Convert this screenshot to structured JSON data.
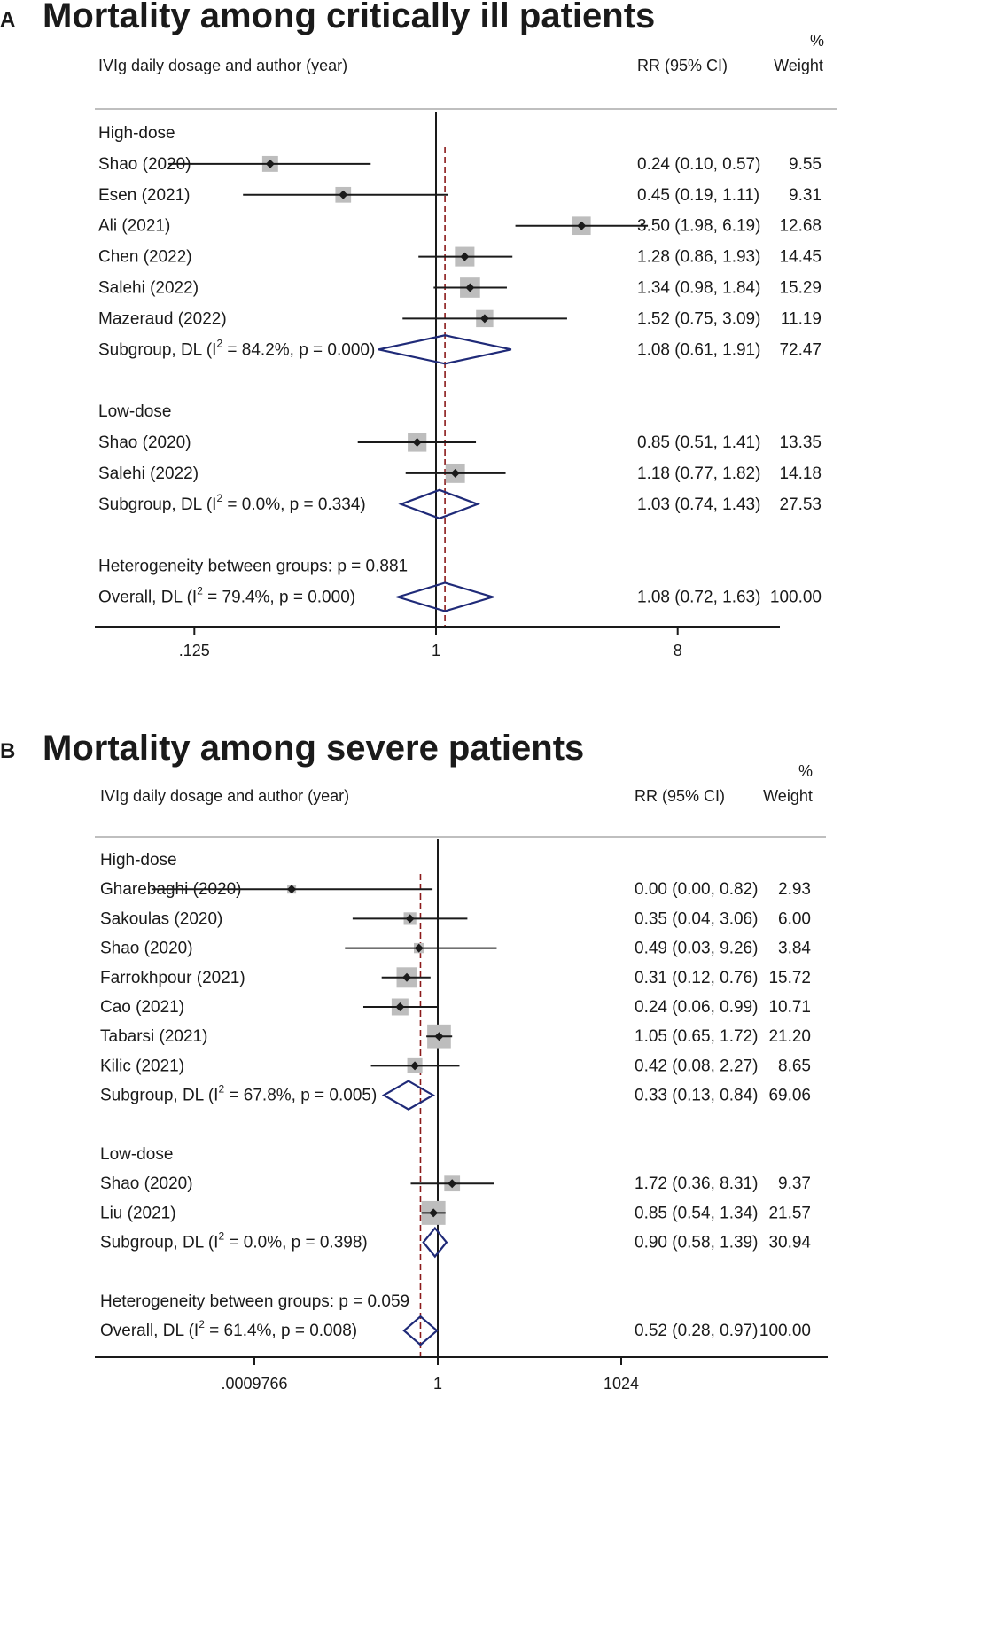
{
  "chart_data": [
    {
      "type": "forest",
      "panel_label": "A",
      "title": "Mortality among critically ill patients",
      "header": {
        "label_col": "IVIg daily dosage and author (year)",
        "rr_col": "RR (95% CI)",
        "weight_pct": "%",
        "weight_col": "Weight"
      },
      "scale": "log",
      "x_ticks": [
        {
          "value": 0.125,
          "label": ".125"
        },
        {
          "value": 1,
          "label": "1"
        },
        {
          "value": 8,
          "label": "8"
        }
      ],
      "null_line": 1,
      "overall_line": 1.08,
      "rows": [
        {
          "kind": "group",
          "label": "High-dose"
        },
        {
          "kind": "study",
          "label": "Shao (2020)",
          "rr": 0.24,
          "lo": 0.1,
          "hi": 0.57,
          "rr_text": "0.24 (0.10, 0.57)",
          "weight": "9.55"
        },
        {
          "kind": "study",
          "label": "Esen (2021)",
          "rr": 0.45,
          "lo": 0.19,
          "hi": 1.11,
          "rr_text": "0.45 (0.19, 1.11)",
          "weight": "9.31"
        },
        {
          "kind": "study",
          "label": "Ali (2021)",
          "rr": 3.5,
          "lo": 1.98,
          "hi": 6.19,
          "rr_text": "3.50 (1.98, 6.19)",
          "weight": "12.68"
        },
        {
          "kind": "study",
          "label": "Chen (2022)",
          "rr": 1.28,
          "lo": 0.86,
          "hi": 1.93,
          "rr_text": "1.28 (0.86, 1.93)",
          "weight": "14.45"
        },
        {
          "kind": "study",
          "label": "Salehi (2022)",
          "rr": 1.34,
          "lo": 0.98,
          "hi": 1.84,
          "rr_text": "1.34 (0.98, 1.84)",
          "weight": "15.29"
        },
        {
          "kind": "study",
          "label": "Mazeraud (2022)",
          "rr": 1.52,
          "lo": 0.75,
          "hi": 3.09,
          "rr_text": "1.52 (0.75, 3.09)",
          "weight": "11.19"
        },
        {
          "kind": "subgroup",
          "label_pre": "Subgroup, DL (I",
          "label_sup": "2",
          "label_post": " = 84.2%, p = 0.000)",
          "rr": 1.08,
          "lo": 0.61,
          "hi": 1.91,
          "rr_text": "1.08 (0.61, 1.91)",
          "weight": "72.47"
        },
        {
          "kind": "blank"
        },
        {
          "kind": "group",
          "label": "Low-dose"
        },
        {
          "kind": "study",
          "label": "Shao (2020)",
          "rr": 0.85,
          "lo": 0.51,
          "hi": 1.41,
          "rr_text": "0.85 (0.51, 1.41)",
          "weight": "13.35"
        },
        {
          "kind": "study",
          "label": "Salehi (2022)",
          "rr": 1.18,
          "lo": 0.77,
          "hi": 1.82,
          "rr_text": "1.18 (0.77, 1.82)",
          "weight": "14.18"
        },
        {
          "kind": "subgroup",
          "label_pre": "Subgroup, DL (I",
          "label_sup": "2",
          "label_post": " = 0.0%, p = 0.334)",
          "rr": 1.03,
          "lo": 0.74,
          "hi": 1.43,
          "rr_text": "1.03 (0.74, 1.43)",
          "weight": "27.53"
        },
        {
          "kind": "blank"
        },
        {
          "kind": "group",
          "label": "Heterogeneity between groups: p = 0.881"
        },
        {
          "kind": "overall",
          "label_pre": "Overall, DL (I",
          "label_sup": "2",
          "label_post": " = 79.4%, p = 0.000)",
          "rr": 1.08,
          "lo": 0.72,
          "hi": 1.63,
          "rr_text": "1.08 (0.72, 1.63)",
          "weight": "100.00"
        }
      ]
    },
    {
      "type": "forest",
      "panel_label": "B",
      "title": "Mortality among severe patients",
      "header": {
        "label_col": "IVIg daily dosage and author (year)",
        "rr_col": "RR (95% CI)",
        "weight_pct": "%",
        "weight_col": "Weight"
      },
      "scale": "log",
      "x_ticks": [
        {
          "value": 0.0009766,
          "label": ".0009766"
        },
        {
          "value": 1,
          "label": "1"
        },
        {
          "value": 1024,
          "label": "1024"
        }
      ],
      "null_line": 1,
      "overall_line": 0.52,
      "rows": [
        {
          "kind": "group",
          "label": "High-dose"
        },
        {
          "kind": "study",
          "label": "Gharebaghi (2020)",
          "rr": 0.004,
          "lo": 2e-05,
          "hi": 0.82,
          "rr_text": "0.00 (0.00, 0.82)",
          "weight": "2.93"
        },
        {
          "kind": "study",
          "label": "Sakoulas (2020)",
          "rr": 0.35,
          "lo": 0.04,
          "hi": 3.06,
          "rr_text": "0.35 (0.04, 3.06)",
          "weight": "6.00"
        },
        {
          "kind": "study",
          "label": "Shao (2020)",
          "rr": 0.49,
          "lo": 0.03,
          "hi": 9.26,
          "rr_text": "0.49 (0.03, 9.26)",
          "weight": "3.84"
        },
        {
          "kind": "study",
          "label": "Farrokhpour (2021)",
          "rr": 0.31,
          "lo": 0.12,
          "hi": 0.76,
          "rr_text": "0.31 (0.12, 0.76)",
          "weight": "15.72"
        },
        {
          "kind": "study",
          "label": "Cao (2021)",
          "rr": 0.24,
          "lo": 0.06,
          "hi": 0.99,
          "rr_text": "0.24 (0.06, 0.99)",
          "weight": "10.71"
        },
        {
          "kind": "study",
          "label": "Tabarsi (2021)",
          "rr": 1.05,
          "lo": 0.65,
          "hi": 1.72,
          "rr_text": "1.05 (0.65, 1.72)",
          "weight": "21.20"
        },
        {
          "kind": "study",
          "label": "Kilic (2021)",
          "rr": 0.42,
          "lo": 0.08,
          "hi": 2.27,
          "rr_text": "0.42 (0.08, 2.27)",
          "weight": "8.65"
        },
        {
          "kind": "subgroup",
          "label_pre": "Subgroup, DL (I",
          "label_sup": "2",
          "label_post": " = 67.8%, p = 0.005)",
          "rr": 0.33,
          "lo": 0.13,
          "hi": 0.84,
          "rr_text": "0.33 (0.13, 0.84)",
          "weight": "69.06"
        },
        {
          "kind": "blank"
        },
        {
          "kind": "group",
          "label": "Low-dose"
        },
        {
          "kind": "study",
          "label": "Shao (2020)",
          "rr": 1.72,
          "lo": 0.36,
          "hi": 8.31,
          "rr_text": "1.72 (0.36, 8.31)",
          "weight": "9.37"
        },
        {
          "kind": "study",
          "label": "Liu (2021)",
          "rr": 0.85,
          "lo": 0.54,
          "hi": 1.34,
          "rr_text": "0.85 (0.54, 1.34)",
          "weight": "21.57"
        },
        {
          "kind": "subgroup",
          "label_pre": "Subgroup, DL (I",
          "label_sup": "2",
          "label_post": " = 0.0%, p = 0.398)",
          "rr": 0.9,
          "lo": 0.58,
          "hi": 1.39,
          "rr_text": "0.90 (0.58, 1.39)",
          "weight": "30.94"
        },
        {
          "kind": "blank"
        },
        {
          "kind": "group",
          "label": "Heterogeneity between groups: p = 0.059"
        },
        {
          "kind": "overall",
          "label_pre": "Overall, DL (I",
          "label_sup": "2",
          "label_post": " = 61.4%, p = 0.008)",
          "rr": 0.52,
          "lo": 0.28,
          "hi": 0.97,
          "rr_text": "0.52 (0.28, 0.97)",
          "weight": "100.00"
        }
      ]
    }
  ]
}
